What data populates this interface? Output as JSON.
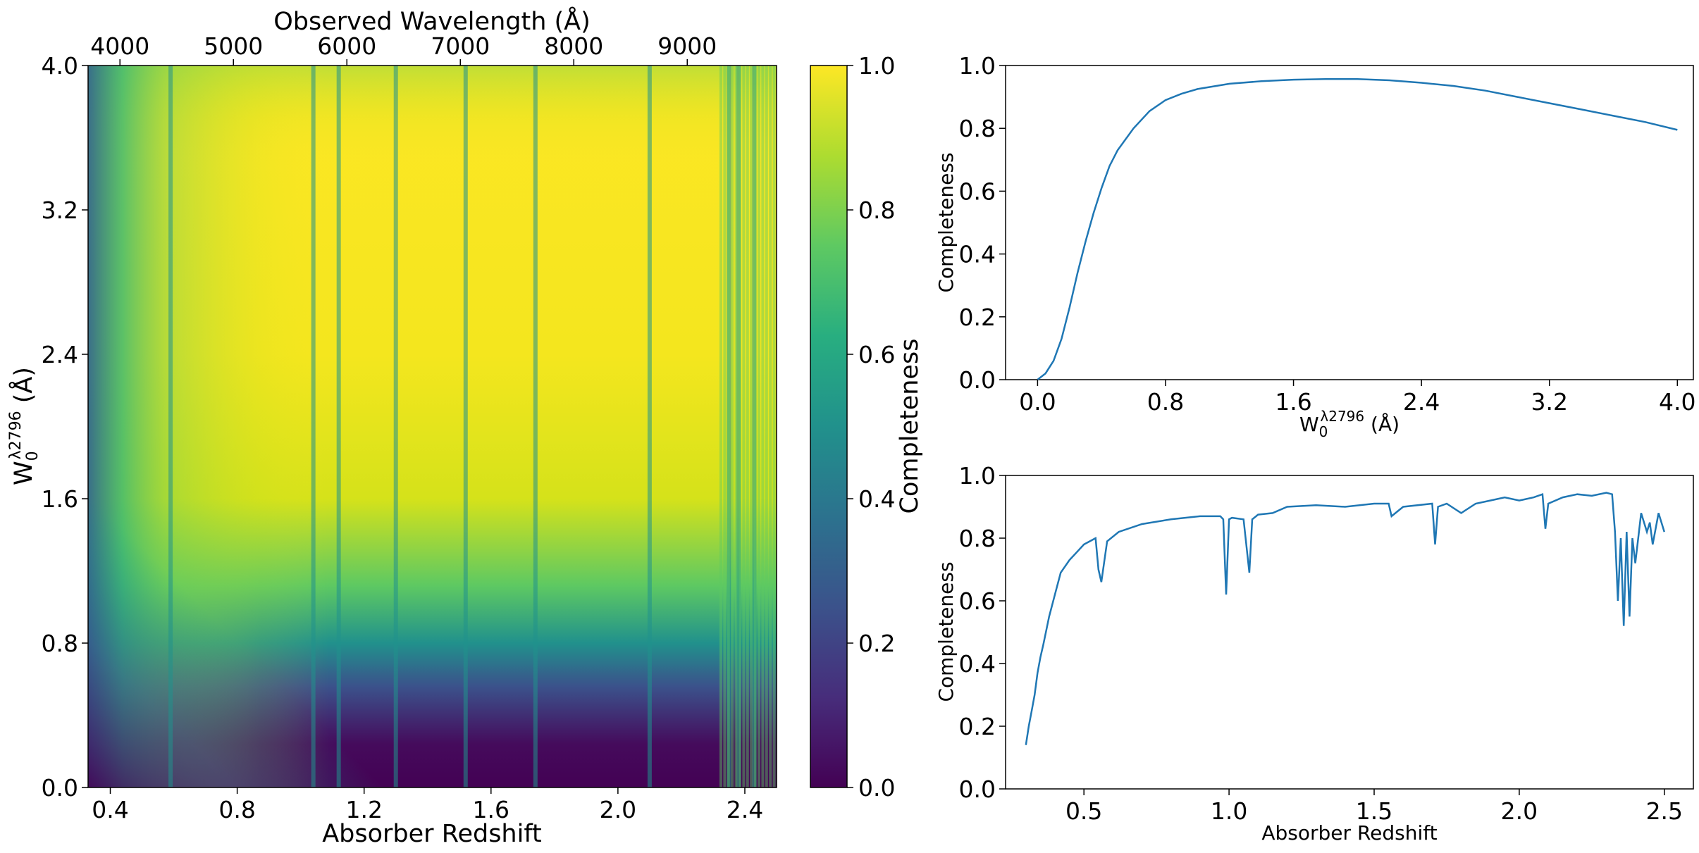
{
  "chart_data": [
    {
      "type": "heatmap",
      "colormap": "viridis",
      "xlabel": "Absorber Redshift",
      "ylabel_main": "W",
      "ylabel_sub": "0",
      "ylabel_sup": "λ2796",
      "ylabel_unit": " (Å)",
      "top_xlabel": "Observed Wavelength (Å)",
      "colorbar_label": "Completeness",
      "xlim": [
        0.33,
        2.5
      ],
      "ylim": [
        0.0,
        4.0
      ],
      "x_ticks": [
        "0.4",
        "0.8",
        "1.2",
        "1.6",
        "2.0",
        "2.4"
      ],
      "y_ticks": [
        "0.0",
        "0.8",
        "1.6",
        "2.4",
        "3.2",
        "4.0"
      ],
      "top_ticks": [
        "4000",
        "5000",
        "6000",
        "7000",
        "8000",
        "9000"
      ],
      "colorbar_ticks": [
        "0.0",
        "0.2",
        "0.4",
        "0.6",
        "0.8",
        "1.0"
      ],
      "colorbar_range": [
        0.0,
        1.0
      ],
      "absorption_features_z": [
        0.59,
        1.04,
        1.12,
        1.3,
        1.52,
        1.74,
        2.1,
        2.35,
        2.38,
        2.43
      ]
    },
    {
      "type": "line",
      "xlabel_main": "W",
      "xlabel_sub": "0",
      "xlabel_sup": "λ2796",
      "xlabel_unit": " (Å)",
      "ylabel": "Completeness",
      "xlim": [
        -0.2,
        4.1
      ],
      "ylim": [
        0.0,
        1.0
      ],
      "x_ticks": [
        "0.0",
        "0.8",
        "1.6",
        "2.4",
        "3.2",
        "4.0"
      ],
      "y_ticks": [
        "0.0",
        "0.2",
        "0.4",
        "0.6",
        "0.8",
        "1.0"
      ],
      "color": "#1f77b4",
      "x": [
        0.0,
        0.05,
        0.1,
        0.15,
        0.2,
        0.25,
        0.3,
        0.35,
        0.4,
        0.45,
        0.5,
        0.6,
        0.7,
        0.8,
        0.9,
        1.0,
        1.2,
        1.4,
        1.6,
        1.8,
        2.0,
        2.2,
        2.4,
        2.6,
        2.8,
        3.0,
        3.2,
        3.4,
        3.6,
        3.8,
        4.0
      ],
      "y": [
        0.0,
        0.02,
        0.06,
        0.13,
        0.23,
        0.34,
        0.44,
        0.53,
        0.61,
        0.68,
        0.73,
        0.8,
        0.855,
        0.89,
        0.91,
        0.925,
        0.942,
        0.95,
        0.955,
        0.957,
        0.957,
        0.953,
        0.945,
        0.935,
        0.92,
        0.9,
        0.88,
        0.86,
        0.84,
        0.82,
        0.795
      ]
    },
    {
      "type": "line",
      "xlabel": "Absorber Redshift",
      "ylabel": "Completeness",
      "xlim": [
        0.23,
        2.6
      ],
      "ylim": [
        0.0,
        1.0
      ],
      "x_ticks": [
        "0.5",
        "1.0",
        "1.5",
        "2.0",
        "2.5"
      ],
      "y_ticks": [
        "0.0",
        "0.2",
        "0.4",
        "0.6",
        "0.8",
        "1.0"
      ],
      "color": "#1f77b4",
      "x": [
        0.3,
        0.31,
        0.32,
        0.33,
        0.34,
        0.35,
        0.36,
        0.38,
        0.4,
        0.42,
        0.45,
        0.48,
        0.5,
        0.52,
        0.54,
        0.55,
        0.56,
        0.58,
        0.62,
        0.7,
        0.8,
        0.9,
        0.97,
        0.98,
        0.99,
        1.0,
        1.01,
        1.05,
        1.07,
        1.08,
        1.1,
        1.15,
        1.2,
        1.3,
        1.4,
        1.5,
        1.55,
        1.56,
        1.6,
        1.7,
        1.71,
        1.72,
        1.75,
        1.8,
        1.85,
        1.9,
        1.95,
        2.0,
        2.05,
        2.08,
        2.09,
        2.1,
        2.15,
        2.2,
        2.25,
        2.3,
        2.32,
        2.33,
        2.34,
        2.35,
        2.36,
        2.37,
        2.38,
        2.39,
        2.4,
        2.42,
        2.44,
        2.45,
        2.46,
        2.48,
        2.5
      ],
      "y": [
        0.14,
        0.2,
        0.25,
        0.3,
        0.37,
        0.42,
        0.46,
        0.55,
        0.62,
        0.69,
        0.73,
        0.76,
        0.78,
        0.79,
        0.8,
        0.7,
        0.66,
        0.79,
        0.82,
        0.845,
        0.86,
        0.87,
        0.87,
        0.86,
        0.62,
        0.86,
        0.865,
        0.86,
        0.69,
        0.86,
        0.875,
        0.88,
        0.9,
        0.905,
        0.9,
        0.91,
        0.91,
        0.87,
        0.9,
        0.91,
        0.78,
        0.9,
        0.91,
        0.88,
        0.91,
        0.92,
        0.93,
        0.92,
        0.93,
        0.94,
        0.83,
        0.91,
        0.93,
        0.94,
        0.935,
        0.945,
        0.94,
        0.82,
        0.6,
        0.8,
        0.52,
        0.82,
        0.55,
        0.8,
        0.72,
        0.88,
        0.82,
        0.85,
        0.78,
        0.88,
        0.82
      ]
    }
  ]
}
